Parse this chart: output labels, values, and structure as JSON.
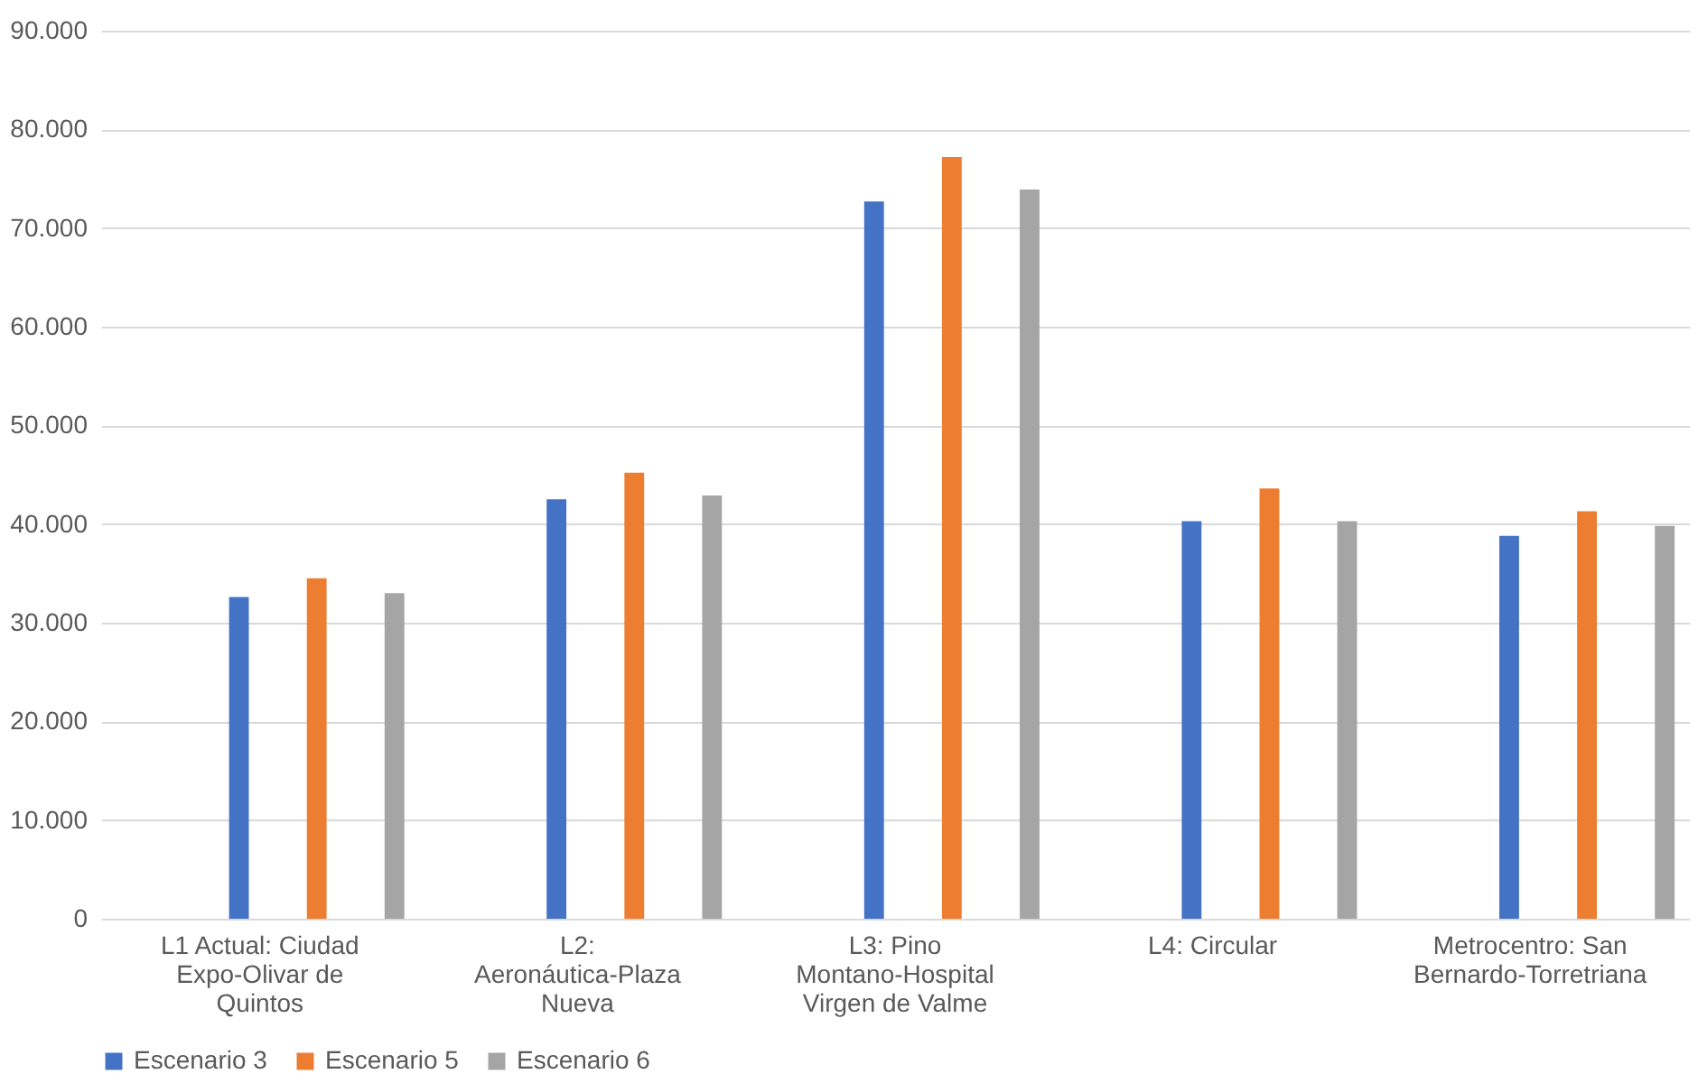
{
  "chart_data": {
    "type": "bar",
    "categories": [
      "L1 Actual: Ciudad Expo-Olivar de Quintos",
      "L2: Aeronáutica-Plaza Nueva",
      "L3: Pino Montano-Hospital Virgen de Valme",
      "L4: Circular",
      "Metrocentro: San Bernardo-Torretriana"
    ],
    "series": [
      {
        "name": "Escenario 3",
        "color": "#4472c4",
        "values": [
          32600,
          42500,
          72700,
          40300,
          38800
        ]
      },
      {
        "name": "Escenario 5",
        "color": "#ed7d31",
        "values": [
          34500,
          45200,
          77200,
          43600,
          41300
        ]
      },
      {
        "name": "Escenario 6",
        "color": "#a5a5a5",
        "values": [
          33000,
          42900,
          73900,
          40300,
          39800
        ]
      }
    ],
    "ylim": [
      0,
      90000
    ],
    "yticks": [
      {
        "value": 0,
        "label": "0"
      },
      {
        "value": 10000,
        "label": "10.000"
      },
      {
        "value": 20000,
        "label": "20.000"
      },
      {
        "value": 30000,
        "label": "30.000"
      },
      {
        "value": 40000,
        "label": "40.000"
      },
      {
        "value": 50000,
        "label": "50.000"
      },
      {
        "value": 60000,
        "label": "60.000"
      },
      {
        "value": 70000,
        "label": "70.000"
      },
      {
        "value": 80000,
        "label": "80.000"
      },
      {
        "value": 90000,
        "label": "90.000"
      }
    ],
    "grid": "y",
    "legend": "bottom"
  }
}
